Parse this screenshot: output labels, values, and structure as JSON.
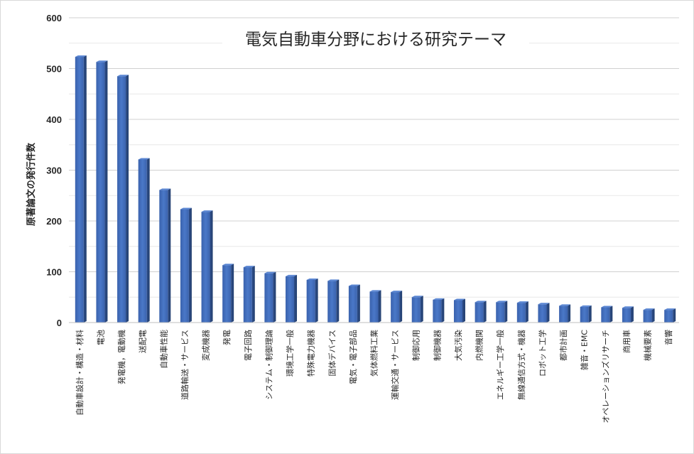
{
  "chart_data": {
    "type": "bar",
    "title": "電気自動車分野における研究テーマ",
    "xlabel": "",
    "ylabel": "原著論文の発行件数",
    "ylim": [
      0,
      600
    ],
    "yticks": [
      0,
      100,
      200,
      300,
      400,
      500,
      600
    ],
    "grid": true,
    "legend": "none",
    "bar_color": "#4472C4",
    "categories": [
      "自動車設計・構造・材料",
      "電池",
      "発電機，電動機",
      "送配電",
      "自動車性能",
      "道路輸送・サービス",
      "変成機器",
      "発電",
      "電子回路",
      "システム・制御理論",
      "環境工学一般",
      "特殊電力機器",
      "固体デバイス",
      "電気・電子部品",
      "気体燃料工業",
      "運輸交通・サービス",
      "制御応用",
      "制御機器",
      "大気汚染",
      "内燃機関",
      "エネルギー工学一般",
      "無線通信方式・機器",
      "ロボット工学",
      "都市計画",
      "雑音・EMC",
      "オペレーションズリサーチ",
      "商用車",
      "機械要素",
      "音響"
    ],
    "values": [
      523,
      513,
      485,
      321,
      261,
      223,
      218,
      113,
      109,
      97,
      91,
      84,
      82,
      72,
      61,
      60,
      50,
      45,
      44,
      40,
      40,
      39,
      36,
      33,
      31,
      30,
      29,
      25,
      25
    ]
  }
}
